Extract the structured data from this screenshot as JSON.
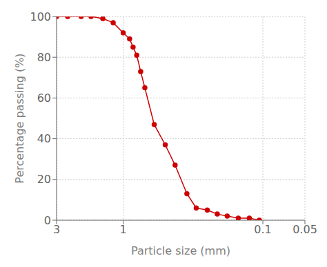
{
  "chart_data": {
    "type": "line",
    "x": [
      3.0,
      2.5,
      2.0,
      1.7,
      1.4,
      1.18,
      1.0,
      0.9,
      0.85,
      0.8,
      0.75,
      0.7,
      0.6,
      0.5,
      0.425,
      0.35,
      0.3,
      0.25,
      0.212,
      0.18,
      0.15,
      0.125,
      0.106
    ],
    "values": [
      100,
      100,
      100,
      100,
      99,
      97,
      92,
      89,
      85,
      81,
      73,
      65,
      47,
      37,
      27,
      13,
      6,
      5,
      3,
      2,
      1,
      1,
      0
    ],
    "color": "#cc0000",
    "marker": "circle",
    "xlabel": "Particle size (mm)",
    "ylabel": "Percentage passing (%)",
    "log": "x",
    "xlim": [
      3.0,
      0.05
    ],
    "xticks": [
      3,
      1,
      0.1,
      0.05
    ],
    "ylim": [
      0,
      100
    ],
    "yticks": [
      0,
      20,
      40,
      60,
      80,
      100
    ],
    "grid": true
  }
}
